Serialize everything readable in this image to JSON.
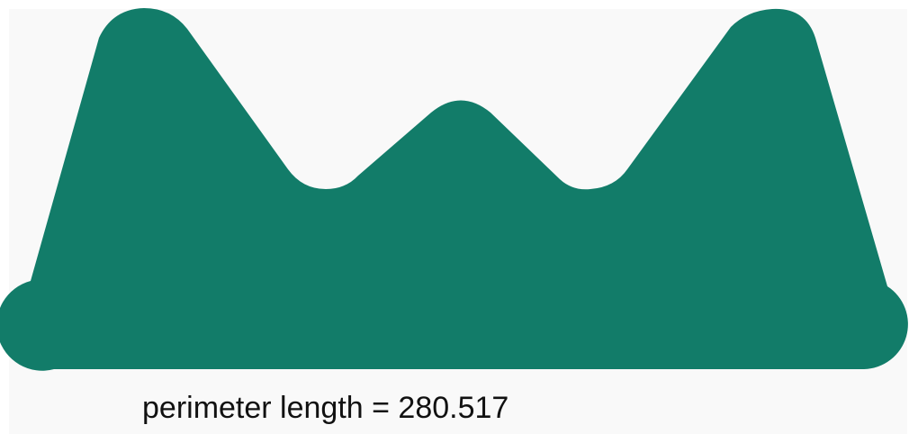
{
  "shape": {
    "fill": "#127c69"
  },
  "caption": {
    "text": "perimeter length = 280.517"
  },
  "background": {
    "panel_color": "#f9f9f9"
  }
}
